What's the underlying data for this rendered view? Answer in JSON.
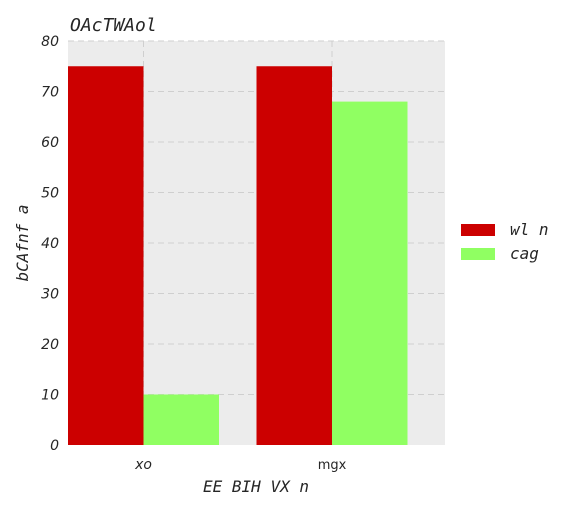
{
  "chart_data": {
    "type": "bar",
    "title": "OAcTWAol",
    "xlabel": "EE BIH  VX n",
    "ylabel": "bCAfnf a",
    "categories": [
      "xo",
      "mgx"
    ],
    "series": [
      {
        "name": "wl n",
        "values": [
          75,
          75
        ],
        "color": "#cc0000"
      },
      {
        "name": "cag",
        "values": [
          10,
          68
        ],
        "color": "#90ff62"
      }
    ],
    "ylim": [
      0,
      80
    ],
    "yticks": [
      0,
      10,
      20,
      30,
      40,
      50,
      60,
      70,
      80
    ],
    "grid": true,
    "legend_position": "right",
    "plot_background": "#ececec"
  }
}
